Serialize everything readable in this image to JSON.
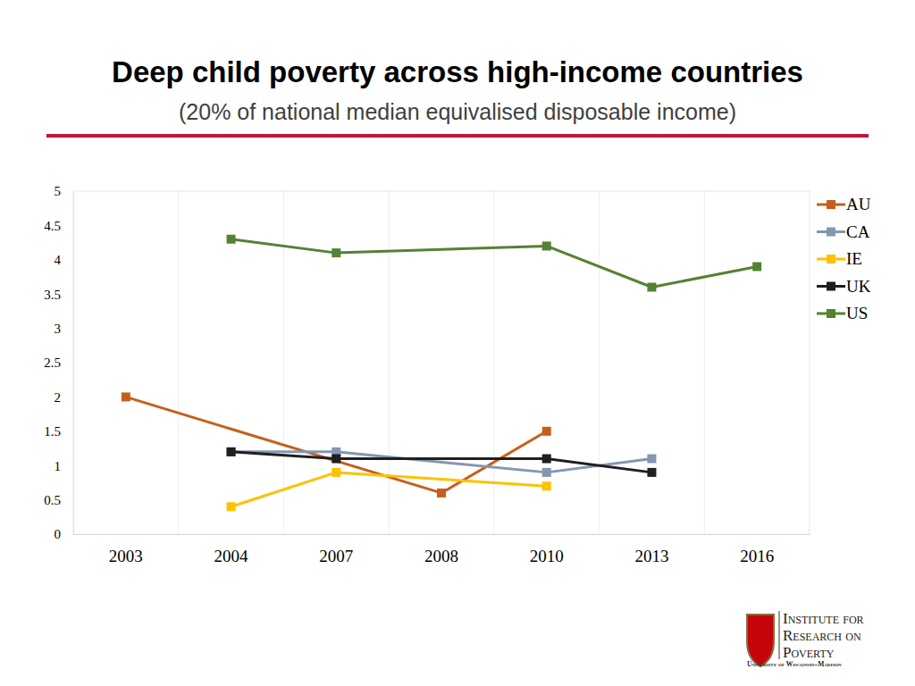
{
  "chart_data": {
    "type": "line",
    "title": "Deep child poverty across high-income countries",
    "subtitle": "(20% of national median equivalised disposable income)",
    "categories": [
      "2003",
      "2004",
      "2007",
      "2008",
      "2010",
      "2013",
      "2016"
    ],
    "series": [
      {
        "name": "AU",
        "color": "#c5601a",
        "values": [
          2,
          null,
          null,
          0.6,
          1.5,
          null,
          null
        ]
      },
      {
        "name": "CA",
        "color": "#8497b0",
        "values": [
          null,
          1.2,
          1.2,
          null,
          0.9,
          1.1,
          null
        ]
      },
      {
        "name": "IE",
        "color": "#ffc000",
        "values": [
          null,
          0.4,
          0.9,
          null,
          0.7,
          null,
          null
        ]
      },
      {
        "name": "UK",
        "color": "#1f1f1f",
        "values": [
          null,
          1.2,
          1.1,
          null,
          1.1,
          0.9,
          null
        ]
      },
      {
        "name": "US",
        "color": "#548235",
        "values": [
          null,
          4.3,
          4.1,
          null,
          4.2,
          3.6,
          3.9
        ]
      }
    ],
    "ylim": [
      0,
      5
    ],
    "yticks": [
      0,
      0.5,
      1,
      1.5,
      2,
      2.5,
      3,
      3.5,
      4,
      4.5,
      5
    ],
    "grid": true,
    "legend": "right",
    "marker": "square",
    "line_style": "solid",
    "annotations": [
      "Institute for",
      "Research on",
      "Poverty",
      "University of Wisconsin–Madison"
    ]
  }
}
